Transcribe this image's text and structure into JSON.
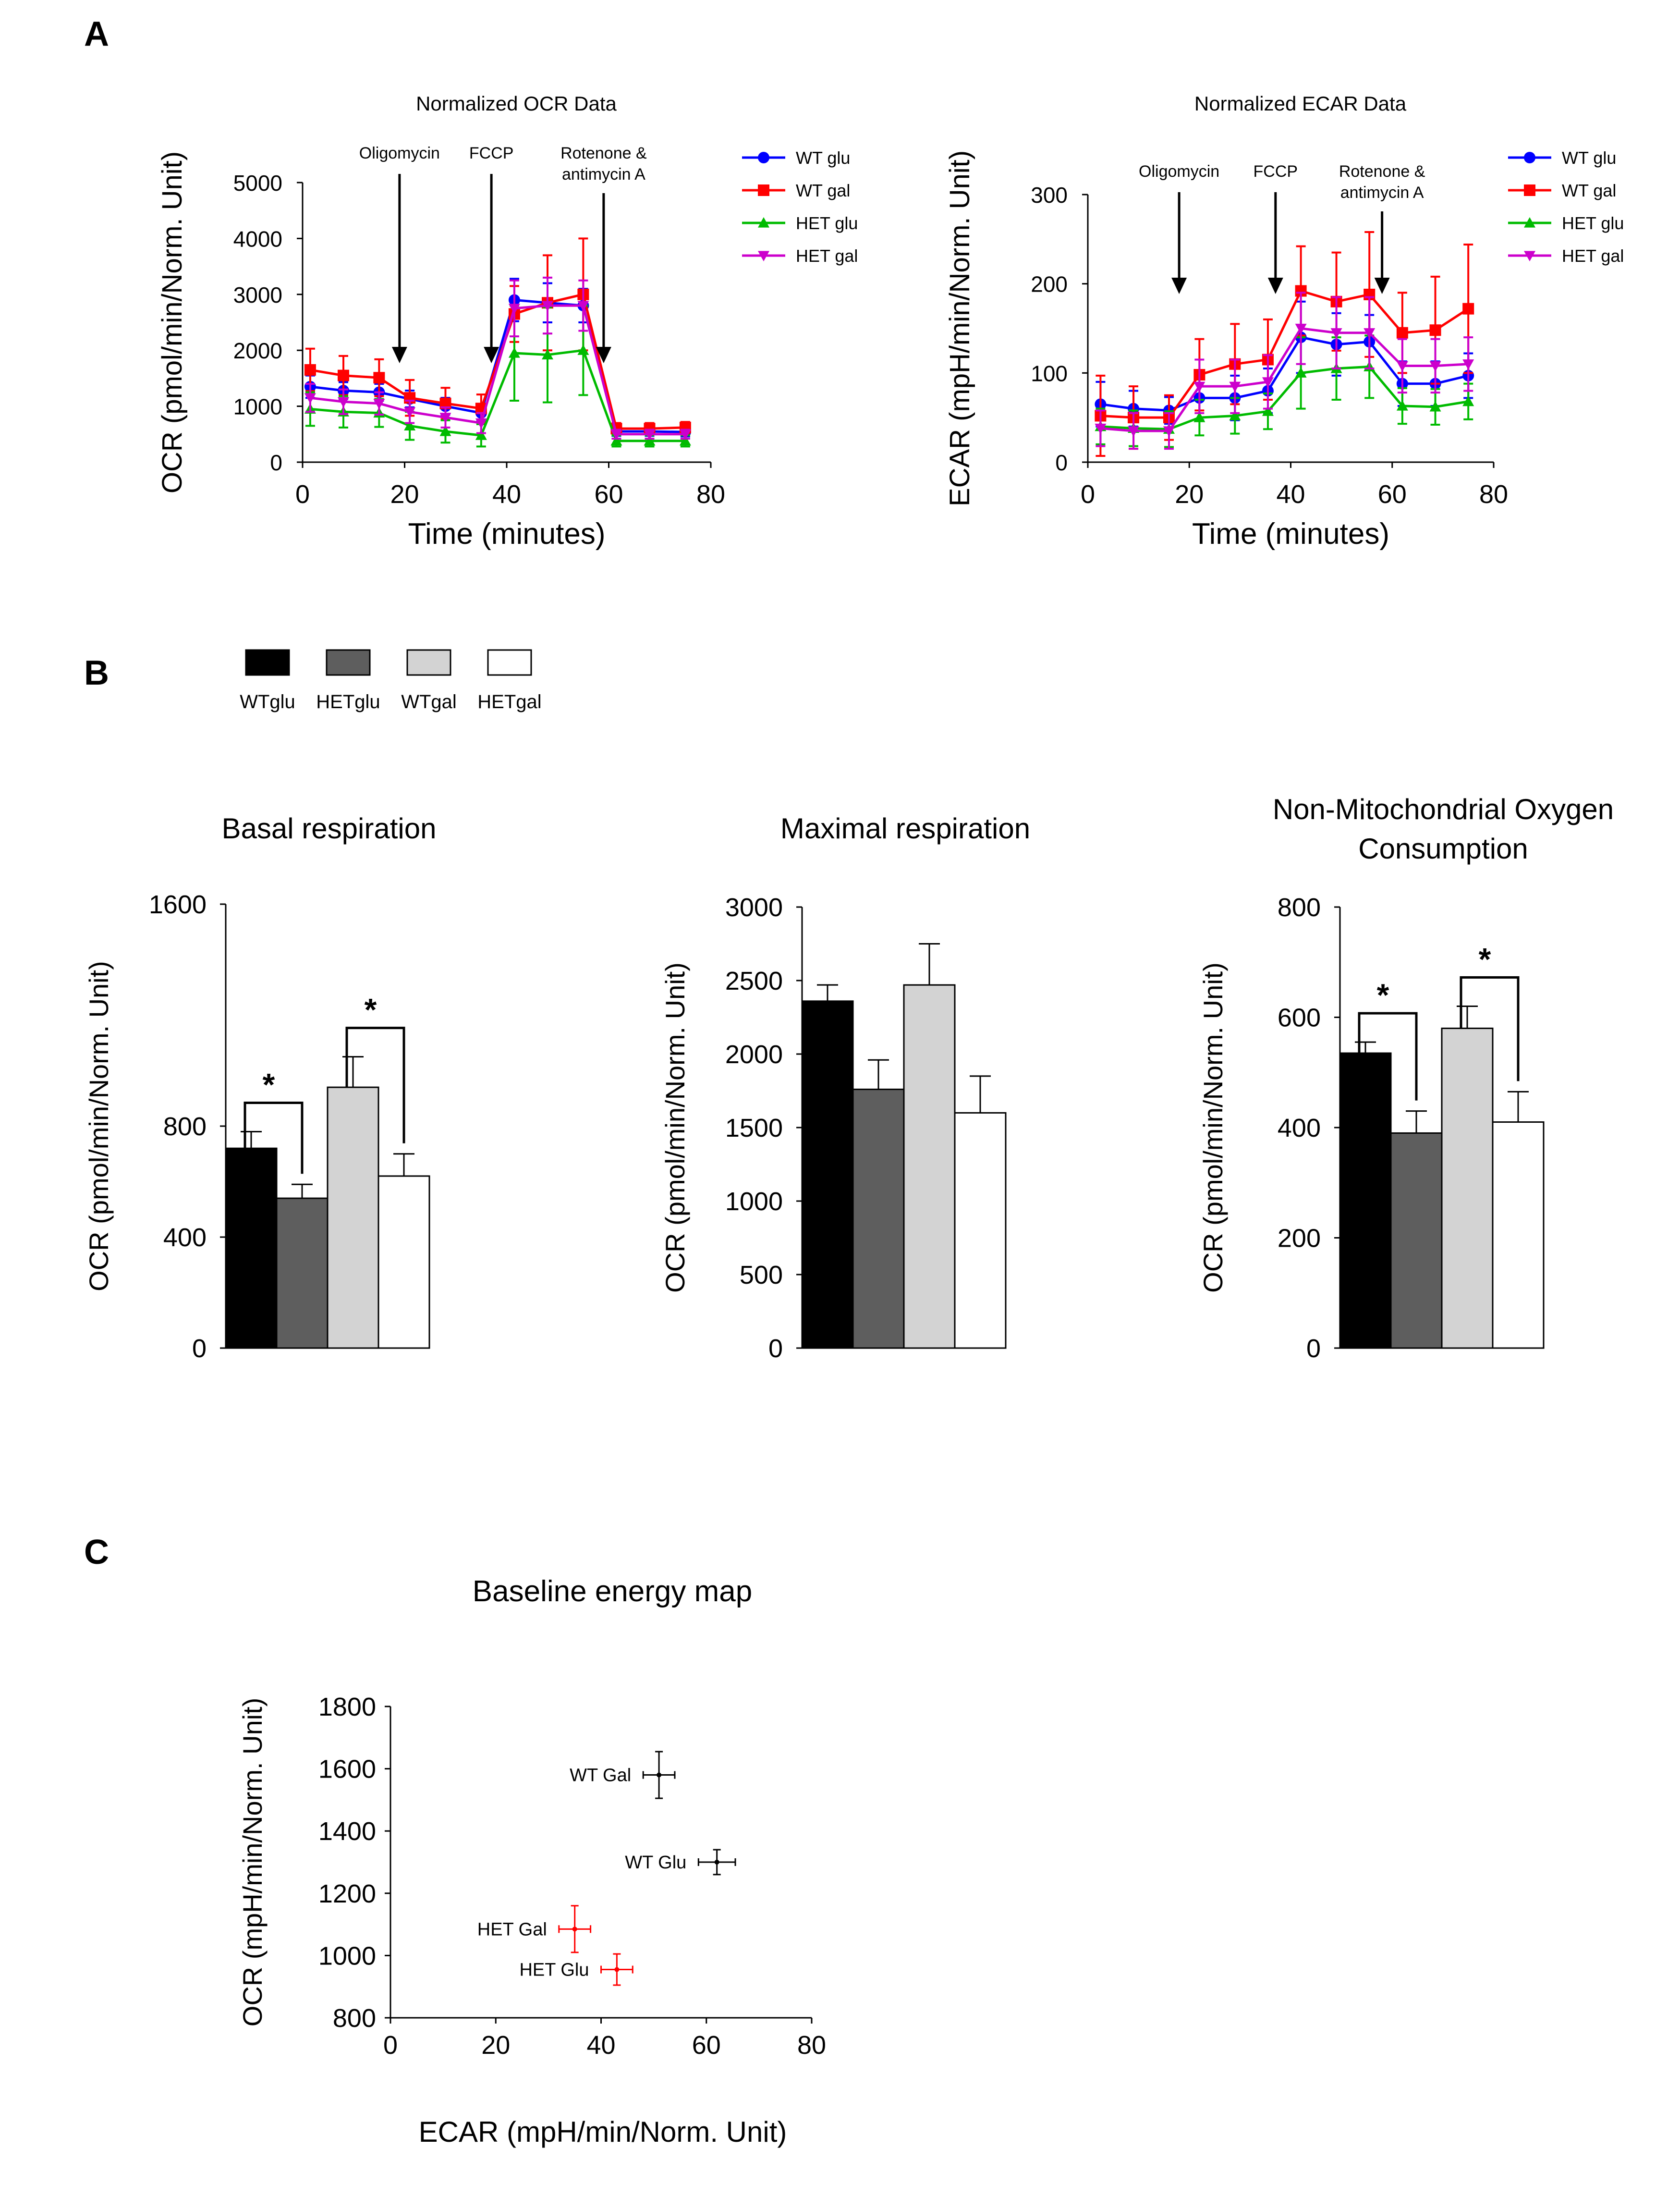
{
  "panel_labels": {
    "a": "A",
    "b": "B",
    "c": "C"
  },
  "colors": {
    "wt_glu": "#0000ff",
    "wt_gal": "#ff0000",
    "het_glu": "#00bb00",
    "het_gal": "#cc00cc",
    "bar_wtglu": "#000000",
    "bar_hetglu": "#5e5e5e",
    "bar_wtgal": "#d3d3d3",
    "bar_hetgal": "#ffffff",
    "map_wt": "#000000",
    "map_het": "#ff0000"
  },
  "bar_legend": [
    "WTglu",
    "HETglu",
    "WTgal",
    "HETgal"
  ],
  "chart_data": [
    {
      "id": "ocr_time",
      "type": "line",
      "title": "Normalized OCR Data",
      "xlabel": "Time (minutes)",
      "ylabel": "OCR (pmol/min/Norm. Unit)",
      "xlim": [
        0,
        80
      ],
      "ylim": [
        0,
        5000
      ],
      "xticks": [
        0,
        20,
        40,
        60,
        80
      ],
      "yticks": [
        0,
        1000,
        2000,
        3000,
        4000,
        5000
      ],
      "x": [
        1.5,
        8,
        15,
        21,
        28,
        35,
        41.5,
        48,
        55,
        61.5,
        68,
        75
      ],
      "series": [
        {
          "name": "WT glu",
          "marker": "circle",
          "values": [
            1350,
            1280,
            1250,
            1130,
            1000,
            880,
            2900,
            2850,
            2800,
            550,
            550,
            540
          ],
          "errors": [
            200,
            150,
            150,
            150,
            150,
            150,
            380,
            350,
            300,
            80,
            80,
            80
          ]
        },
        {
          "name": "WT gal",
          "marker": "square",
          "values": [
            1650,
            1550,
            1510,
            1150,
            1050,
            960,
            2650,
            2850,
            3000,
            600,
            600,
            620
          ],
          "errors": [
            380,
            350,
            330,
            320,
            280,
            250,
            500,
            850,
            1000,
            100,
            100,
            100
          ]
        },
        {
          "name": "HET glu",
          "marker": "triangle",
          "values": [
            950,
            900,
            880,
            650,
            550,
            480,
            1950,
            1920,
            2000,
            380,
            380,
            380
          ],
          "errors": [
            300,
            280,
            250,
            250,
            200,
            200,
            850,
            850,
            800,
            100,
            100,
            100
          ]
        },
        {
          "name": "HET gal",
          "marker": "triangle-down",
          "values": [
            1150,
            1080,
            1050,
            900,
            800,
            700,
            2750,
            2800,
            2800,
            500,
            500,
            500
          ],
          "errors": [
            250,
            220,
            200,
            200,
            180,
            180,
            500,
            500,
            450,
            80,
            80,
            80
          ]
        }
      ],
      "annotations": [
        {
          "text": "Oligomycin",
          "x": 19
        },
        {
          "text": "FCCP",
          "x": 37
        },
        {
          "text": "Rotenone &",
          "text2": "antimycin A",
          "x": 59
        }
      ]
    },
    {
      "id": "ecar_time",
      "type": "line",
      "title": "Normalized ECAR Data",
      "xlabel": "Time (minutes)",
      "ylabel": "ECAR (mpH/min/Norm. Unit)",
      "xlim": [
        0,
        80
      ],
      "ylim": [
        0,
        300
      ],
      "xticks": [
        0,
        20,
        40,
        60,
        80
      ],
      "yticks": [
        0,
        100,
        200,
        300
      ],
      "x": [
        2.5,
        9,
        16,
        22,
        29,
        35.5,
        42,
        49,
        55.5,
        62,
        68.5,
        75
      ],
      "series": [
        {
          "name": "WT glu",
          "marker": "circle",
          "values": [
            65,
            60,
            58,
            72,
            72,
            80,
            140,
            132,
            135,
            88,
            88,
            97
          ],
          "errors": [
            25,
            20,
            15,
            25,
            25,
            25,
            40,
            35,
            30,
            25,
            25,
            25
          ]
        },
        {
          "name": "WT gal",
          "marker": "square",
          "values": [
            52,
            50,
            50,
            98,
            110,
            115,
            192,
            180,
            188,
            145,
            148,
            172
          ],
          "errors": [
            45,
            35,
            25,
            40,
            45,
            45,
            50,
            55,
            70,
            45,
            60,
            72
          ]
        },
        {
          "name": "HET glu",
          "marker": "triangle",
          "values": [
            40,
            38,
            37,
            50,
            52,
            57,
            100,
            105,
            107,
            63,
            62,
            68
          ],
          "errors": [
            20,
            20,
            20,
            20,
            20,
            20,
            40,
            35,
            35,
            20,
            20,
            20
          ]
        },
        {
          "name": "HET gal",
          "marker": "triangle-down",
          "values": [
            38,
            35,
            35,
            85,
            85,
            90,
            150,
            145,
            145,
            108,
            108,
            110
          ],
          "errors": [
            20,
            20,
            20,
            30,
            30,
            30,
            40,
            40,
            40,
            30,
            30,
            30
          ]
        }
      ],
      "annotations": [
        {
          "text": "Oligomycin",
          "x": 18
        },
        {
          "text": "FCCP",
          "x": 37
        },
        {
          "text": "Rotenone &",
          "text2": "antimycin A",
          "x": 58
        }
      ]
    },
    {
      "id": "basal",
      "type": "bar",
      "title": "Basal respiration",
      "ylabel": "OCR (pmol/min/Norm. Unit)",
      "categories": [
        "WTglu",
        "HETglu",
        "WTgal",
        "HETgal"
      ],
      "values": [
        720,
        540,
        940,
        620
      ],
      "errors": [
        60,
        50,
        110,
        80
      ],
      "ylim": [
        0,
        1600
      ],
      "yticks": [
        0,
        400,
        800,
        1600
      ],
      "significance": [
        {
          "pair": [
            0,
            1
          ],
          "label": "*"
        },
        {
          "pair": [
            2,
            3
          ],
          "label": "*"
        }
      ]
    },
    {
      "id": "maximal",
      "type": "bar",
      "title": "Maximal respiration",
      "ylabel": "OCR (pmol/min/Norm. Unit)",
      "categories": [
        "WTglu",
        "HETglu",
        "WTgal",
        "HETgal"
      ],
      "values": [
        2360,
        1760,
        2470,
        1600
      ],
      "errors": [
        110,
        200,
        280,
        250
      ],
      "ylim": [
        0,
        3000
      ],
      "yticks": [
        0,
        500,
        1000,
        1500,
        2000,
        2500,
        3000
      ],
      "significance": []
    },
    {
      "id": "nonmito",
      "type": "bar",
      "title": "Non-Mitochondrial Oxygen",
      "title2": "Consumption",
      "ylabel": "OCR (pmol/min/Norm. Unit)",
      "categories": [
        "WTglu",
        "HETglu",
        "WTgal",
        "HETgal"
      ],
      "values": [
        535,
        390,
        580,
        410
      ],
      "errors": [
        20,
        40,
        40,
        55
      ],
      "ylim": [
        0,
        800
      ],
      "yticks": [
        0,
        200,
        400,
        600,
        800
      ],
      "significance": [
        {
          "pair": [
            0,
            1
          ],
          "label": "*"
        },
        {
          "pair": [
            2,
            3
          ],
          "label": "*"
        }
      ]
    },
    {
      "id": "energy_map",
      "type": "scatter",
      "title": "Baseline energy map",
      "xlabel": "ECAR (mpH/min/Norm. Unit)",
      "ylabel": "OCR (mpH/min/Norm. Unit)",
      "xlim": [
        0,
        80
      ],
      "ylim": [
        800,
        1800
      ],
      "xticks": [
        0,
        20,
        40,
        60,
        80
      ],
      "yticks": [
        800,
        1000,
        1200,
        1400,
        1600,
        1800
      ],
      "points": [
        {
          "label": "WT Gal",
          "x": 51,
          "y": 1580,
          "xerr": 3,
          "yerr": 75,
          "group": "wt"
        },
        {
          "label": "WT Glu",
          "x": 62,
          "y": 1300,
          "xerr": 3.5,
          "yerr": 40,
          "group": "wt"
        },
        {
          "label": "HET Gal",
          "x": 35,
          "y": 1085,
          "xerr": 3,
          "yerr": 75,
          "group": "het"
        },
        {
          "label": "HET Glu",
          "x": 43,
          "y": 955,
          "xerr": 3,
          "yerr": 50,
          "group": "het"
        }
      ]
    }
  ]
}
